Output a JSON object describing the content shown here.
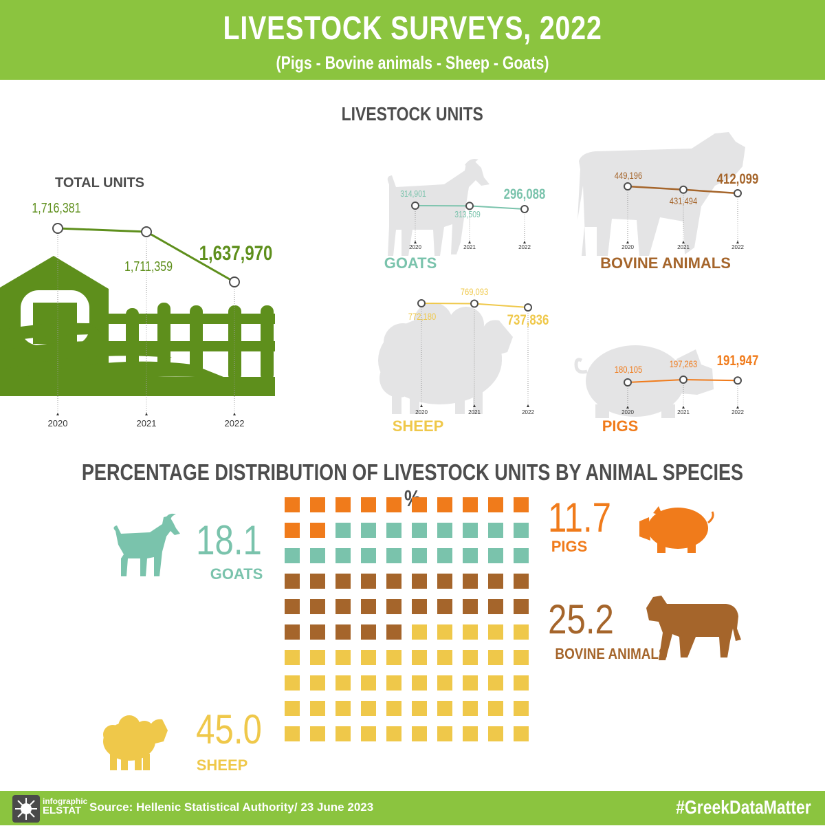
{
  "header": {
    "title": "LIVESTOCK SURVEYS, 2022",
    "subtitle": "(Pigs - Bovine animals - Sheep - Goats)"
  },
  "sections": {
    "units_title": "LIVESTOCK UNITS",
    "distribution_title": "PERCENTAGE DISTRIBUTION OF LIVESTOCK UNITS BY ANIMAL SPECIES %"
  },
  "colors": {
    "green": "#8bc43f",
    "dark_green": "#5e8f1c",
    "goats": "#7ac3ac",
    "bovine": "#a5652b",
    "sheep": "#efc84a",
    "pigs": "#f07b1b",
    "silhouette": "#e4e4e5"
  },
  "chart_data": [
    {
      "type": "line",
      "title": "TOTAL UNITS",
      "x": [
        "2020",
        "2021",
        "2022"
      ],
      "series": [
        {
          "values": [
            1716381,
            1711359,
            1637970
          ]
        }
      ],
      "labels": [
        "1,716,381",
        "1,711,359",
        "1,637,970"
      ]
    },
    {
      "type": "line",
      "title": "GOATS",
      "x": [
        "2020",
        "2021",
        "2022"
      ],
      "series": [
        {
          "values": [
            314901,
            313509,
            296088
          ]
        }
      ],
      "labels": [
        "314,901",
        "313,509",
        "296,088"
      ]
    },
    {
      "type": "line",
      "title": "BOVINE ANIMALS",
      "x": [
        "2020",
        "2021",
        "2022"
      ],
      "series": [
        {
          "values": [
            449196,
            431494,
            412099
          ]
        }
      ],
      "labels": [
        "449,196",
        "431,494",
        "412,099"
      ]
    },
    {
      "type": "line",
      "title": "SHEEP",
      "x": [
        "2020",
        "2021",
        "2022"
      ],
      "series": [
        {
          "values": [
            772180,
            769093,
            737836
          ]
        }
      ],
      "labels": [
        "772,180",
        "769,093",
        "737,836"
      ]
    },
    {
      "type": "line",
      "title": "PIGS",
      "x": [
        "2020",
        "2021",
        "2022"
      ],
      "series": [
        {
          "values": [
            180105,
            197263,
            191947
          ]
        }
      ],
      "labels": [
        "180,105",
        "197,263",
        "191,947"
      ]
    },
    {
      "type": "waffle",
      "title": "PERCENTAGE DISTRIBUTION OF LIVESTOCK UNITS BY ANIMAL SPECIES %",
      "categories": [
        "PIGS",
        "GOATS",
        "BOVINE ANIMALS",
        "SHEEP"
      ],
      "values": [
        11.7,
        18.1,
        25.2,
        45.0
      ],
      "labels": [
        "11.7",
        "18.1",
        "25.2",
        "45.0"
      ],
      "cells": [
        12,
        18,
        25,
        45
      ]
    }
  ],
  "footer": {
    "logo_top": "infographic",
    "logo_bottom": "ELSTAT",
    "source": "Source: Hellenic Statistical Authority/ 23 June 2023",
    "hashtag": "#GreekDataMatter"
  }
}
